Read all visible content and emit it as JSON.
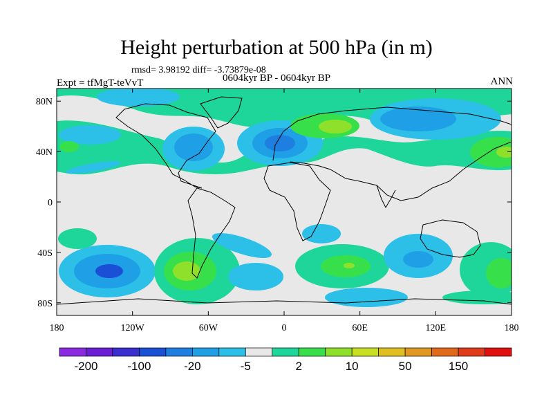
{
  "title": "Height perturbation at 500 hPa (in m)",
  "stats": "rmsd= 3.98192 diff= -3.73879e-08",
  "experiment": "Expt = tfMgT-teVvT",
  "period": "0604kyr BP - 0604kyr BP",
  "season": "ANN",
  "lat_ticks": [
    {
      "value": 80,
      "label": "80N"
    },
    {
      "value": 40,
      "label": "40N"
    },
    {
      "value": 0,
      "label": "0"
    },
    {
      "value": -40,
      "label": "40S"
    },
    {
      "value": -80,
      "label": "80S"
    }
  ],
  "lon_ticks": [
    {
      "value": -180,
      "label": "180"
    },
    {
      "value": -120,
      "label": "120W"
    },
    {
      "value": -60,
      "label": "60W"
    },
    {
      "value": 0,
      "label": "0"
    },
    {
      "value": 60,
      "label": "60E"
    },
    {
      "value": 120,
      "label": "120E"
    },
    {
      "value": 180,
      "label": "180"
    }
  ],
  "colorbar": {
    "colors": [
      "#8a2be2",
      "#6a1fd6",
      "#3a2fd0",
      "#1a4fd6",
      "#1e7fe0",
      "#1e9fe6",
      "#2cc0e8",
      "#e8e8e8",
      "#1fd69a",
      "#37e04a",
      "#8fe02a",
      "#c8e020",
      "#e0c020",
      "#e09820",
      "#e06a1a",
      "#e03a1a",
      "#e01010"
    ],
    "labels": [
      {
        "boundary": 1,
        "text": "-200"
      },
      {
        "boundary": 3,
        "text": "-100"
      },
      {
        "boundary": 5,
        "text": "-20"
      },
      {
        "boundary": 7,
        "text": "-5"
      },
      {
        "boundary": 9,
        "text": "2"
      },
      {
        "boundary": 11,
        "text": "10"
      },
      {
        "boundary": 13,
        "text": "50"
      },
      {
        "boundary": 15,
        "text": "150"
      }
    ]
  }
}
